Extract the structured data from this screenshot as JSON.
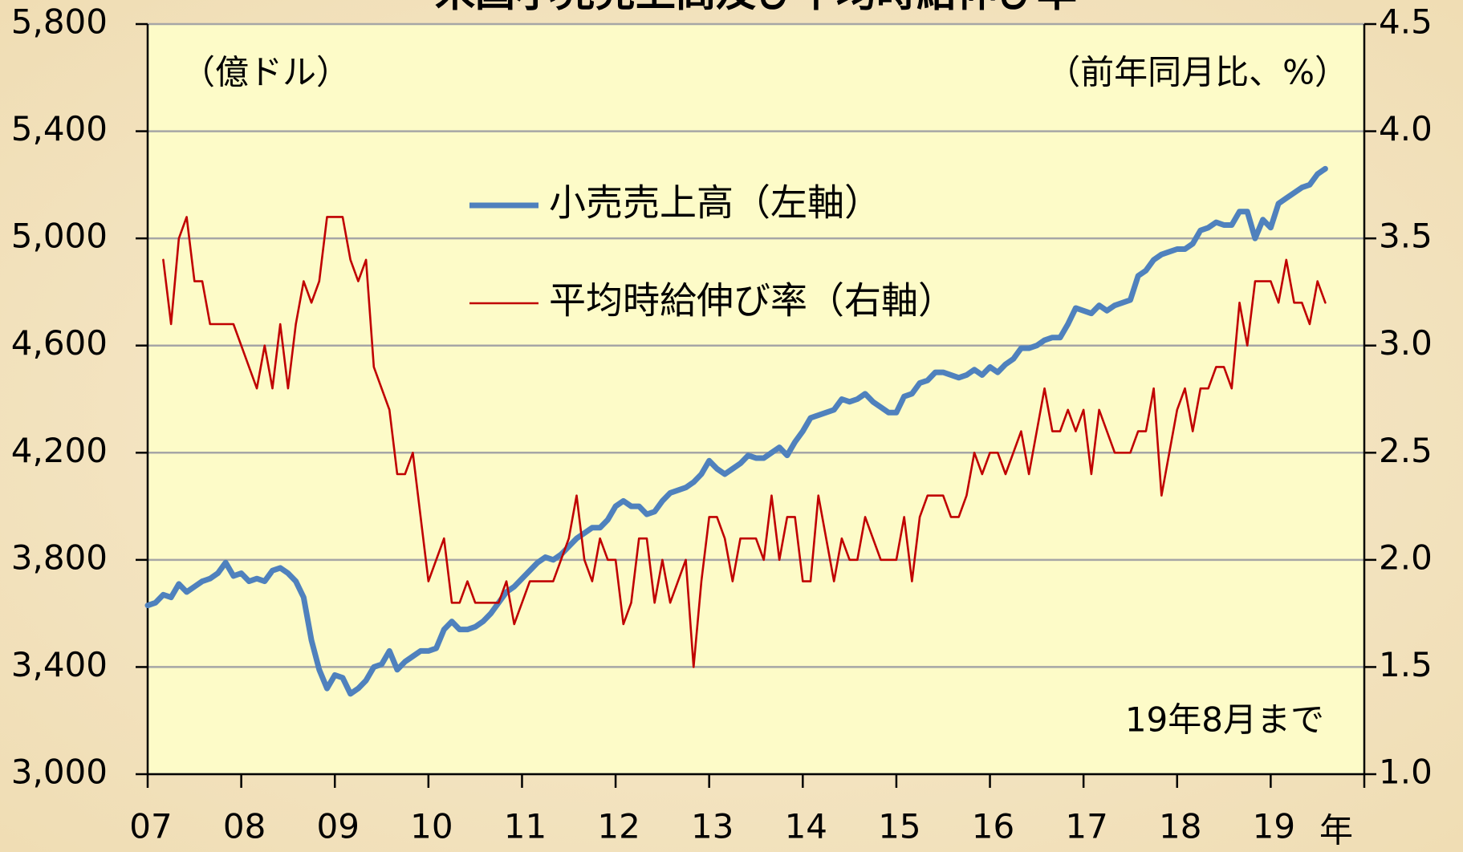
{
  "chart_data": {
    "type": "line",
    "title": "米国小売売上高及び平均時給伸び率",
    "ylabel": "（億ドル）",
    "y2label": "（前年同月比、%）",
    "xlabel": "年",
    "annotation": "19年8月まで",
    "x": [
      0,
      1,
      2,
      3,
      4,
      5,
      6,
      7,
      8,
      9,
      10,
      11,
      12,
      13,
      14,
      15,
      16,
      17,
      18,
      19,
      20,
      21,
      22,
      23,
      24,
      25,
      26,
      27,
      28,
      29,
      30,
      31,
      32,
      33,
      34,
      35,
      36,
      37,
      38,
      39,
      40,
      41,
      42,
      43,
      44,
      45,
      46,
      47,
      48,
      49,
      50,
      51,
      52,
      53,
      54,
      55,
      56,
      57,
      58,
      59,
      60,
      61,
      62,
      63,
      64,
      65,
      66,
      67,
      68,
      69,
      70,
      71,
      72,
      73,
      74,
      75,
      76,
      77,
      78,
      79,
      80,
      81,
      82,
      83,
      84,
      85,
      86,
      87,
      88,
      89,
      90,
      91,
      92,
      93,
      94,
      95,
      96,
      97,
      98,
      99,
      100,
      101,
      102,
      103,
      104,
      105,
      106,
      107,
      108,
      109,
      110,
      111,
      112,
      113,
      114,
      115,
      116,
      117,
      118,
      119,
      120,
      121,
      122,
      123,
      124,
      125,
      126,
      127,
      128,
      129,
      130,
      131,
      132,
      133,
      134,
      135,
      136,
      137,
      138,
      139,
      140,
      141,
      142,
      143,
      144,
      145,
      146,
      147,
      148,
      149,
      150,
      151
    ],
    "xlim": [
      0,
      156
    ],
    "xticks": [
      {
        "value": 0,
        "label": "07"
      },
      {
        "value": 12,
        "label": "08"
      },
      {
        "value": 24,
        "label": "09"
      },
      {
        "value": 36,
        "label": "10"
      },
      {
        "value": 48,
        "label": "11"
      },
      {
        "value": 60,
        "label": "12"
      },
      {
        "value": 72,
        "label": "13"
      },
      {
        "value": 84,
        "label": "14"
      },
      {
        "value": 96,
        "label": "15"
      },
      {
        "value": 108,
        "label": "16"
      },
      {
        "value": 120,
        "label": "17"
      },
      {
        "value": 132,
        "label": "18"
      },
      {
        "value": 144,
        "label": "19"
      }
    ],
    "ylim": [
      3000,
      5800
    ],
    "yticks": [
      {
        "value": 3000,
        "label": "3,000"
      },
      {
        "value": 3400,
        "label": "3,400"
      },
      {
        "value": 3800,
        "label": "3,800"
      },
      {
        "value": 4200,
        "label": "4,200"
      },
      {
        "value": 4600,
        "label": "4,600"
      },
      {
        "value": 5000,
        "label": "5,000"
      },
      {
        "value": 5400,
        "label": "5,400"
      },
      {
        "value": 5800,
        "label": "5,800"
      }
    ],
    "y2lim": [
      1.0,
      4.5
    ],
    "y2ticks": [
      {
        "value": 1.0,
        "label": "1.0"
      },
      {
        "value": 1.5,
        "label": "1.5"
      },
      {
        "value": 2.0,
        "label": "2.0"
      },
      {
        "value": 2.5,
        "label": "2.5"
      },
      {
        "value": 3.0,
        "label": "3.0"
      },
      {
        "value": 3.5,
        "label": "3.5"
      },
      {
        "value": 4.0,
        "label": "4.0"
      },
      {
        "value": 4.5,
        "label": "4.5"
      }
    ],
    "grid": true,
    "series": [
      {
        "name": "小売売上高（左軸）",
        "color": "#4f81bd",
        "axis": "y",
        "values": [
          3630,
          3640,
          3670,
          3660,
          3710,
          3680,
          3700,
          3720,
          3730,
          3750,
          3790,
          3740,
          3750,
          3720,
          3730,
          3720,
          3760,
          3770,
          3750,
          3720,
          3660,
          3500,
          3390,
          3320,
          3370,
          3360,
          3300,
          3320,
          3350,
          3400,
          3410,
          3460,
          3390,
          3420,
          3440,
          3460,
          3460,
          3470,
          3540,
          3570,
          3540,
          3540,
          3550,
          3570,
          3600,
          3640,
          3680,
          3700,
          3730,
          3760,
          3790,
          3810,
          3800,
          3820,
          3850,
          3880,
          3900,
          3920,
          3920,
          3950,
          4000,
          4020,
          4000,
          4000,
          3970,
          3980,
          4020,
          4050,
          4060,
          4070,
          4090,
          4120,
          4170,
          4140,
          4120,
          4140,
          4160,
          4190,
          4180,
          4180,
          4200,
          4220,
          4190,
          4240,
          4280,
          4330,
          4340,
          4350,
          4360,
          4400,
          4390,
          4400,
          4420,
          4390,
          4370,
          4350,
          4350,
          4410,
          4420,
          4460,
          4470,
          4500,
          4500,
          4490,
          4480,
          4490,
          4510,
          4490,
          4520,
          4500,
          4530,
          4550,
          4590,
          4590,
          4600,
          4620,
          4630,
          4630,
          4680,
          4740,
          4730,
          4720,
          4750,
          4730,
          4750,
          4760,
          4770,
          4860,
          4880,
          4920,
          4940,
          4950,
          4960,
          4960,
          4980,
          5030,
          5040,
          5060,
          5050,
          5050,
          5100,
          5100,
          5000,
          5070,
          5040,
          5130,
          5150,
          5170,
          5190,
          5200,
          5240,
          5260
        ]
      },
      {
        "name": "平均時給伸び率（右軸）",
        "color": "#c00000",
        "axis": "y2",
        "values": [
          null,
          null,
          3.4,
          3.1,
          3.5,
          3.6,
          3.3,
          3.3,
          3.1,
          3.1,
          3.1,
          3.1,
          3.0,
          2.9,
          2.8,
          3.0,
          2.8,
          3.1,
          2.8,
          3.1,
          3.3,
          3.2,
          3.3,
          3.6,
          3.6,
          3.6,
          3.4,
          3.3,
          3.4,
          2.9,
          2.8,
          2.7,
          2.4,
          2.4,
          2.5,
          2.2,
          1.9,
          2.0,
          2.1,
          1.8,
          1.8,
          1.9,
          1.8,
          1.8,
          1.8,
          1.8,
          1.9,
          1.7,
          1.8,
          1.9,
          1.9,
          1.9,
          1.9,
          2.0,
          2.1,
          2.3,
          2.0,
          1.9,
          2.1,
          2.0,
          2.0,
          1.7,
          1.8,
          2.1,
          2.1,
          1.8,
          2.0,
          1.8,
          1.9,
          2.0,
          1.5,
          1.9,
          2.2,
          2.2,
          2.1,
          1.9,
          2.1,
          2.1,
          2.1,
          2.0,
          2.3,
          2.0,
          2.2,
          2.2,
          1.9,
          1.9,
          2.3,
          2.1,
          1.9,
          2.1,
          2.0,
          2.0,
          2.2,
          2.1,
          2.0,
          2.0,
          2.0,
          2.2,
          1.9,
          2.2,
          2.3,
          2.3,
          2.3,
          2.2,
          2.2,
          2.3,
          2.5,
          2.4,
          2.5,
          2.5,
          2.4,
          2.5,
          2.6,
          2.4,
          2.6,
          2.8,
          2.6,
          2.6,
          2.7,
          2.6,
          2.7,
          2.4,
          2.7,
          2.6,
          2.5,
          2.5,
          2.5,
          2.6,
          2.6,
          2.8,
          2.3,
          2.5,
          2.7,
          2.8,
          2.6,
          2.8,
          2.8,
          2.9,
          2.9,
          2.8,
          3.2,
          3.0,
          3.3,
          3.3,
          3.3,
          3.2,
          3.4,
          3.2,
          3.2,
          3.1,
          3.3,
          3.2
        ]
      }
    ]
  }
}
